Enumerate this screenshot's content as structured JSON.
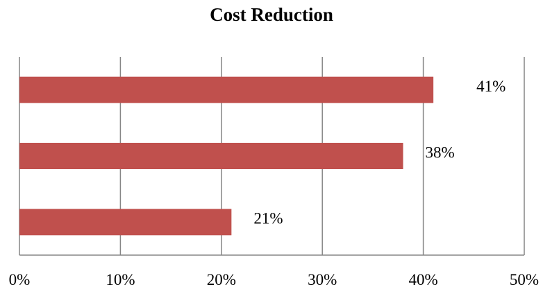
{
  "chart_data": {
    "type": "bar",
    "orientation": "horizontal",
    "title": "Cost Reduction",
    "xlabel": "",
    "ylabel": "",
    "categories": [
      "",
      "",
      ""
    ],
    "values": [
      41,
      38,
      21
    ],
    "data_labels": [
      "41%",
      "38%",
      "21%"
    ],
    "xlim": [
      0,
      50
    ],
    "x_ticks": [
      0,
      10,
      20,
      30,
      40,
      50
    ],
    "x_tick_labels": [
      "0%",
      "10%",
      "20%",
      "30%",
      "40%",
      "50%"
    ],
    "grid": "vertical",
    "legend": "none",
    "bar_color": "#c0504d",
    "grid_color": "#868686"
  }
}
